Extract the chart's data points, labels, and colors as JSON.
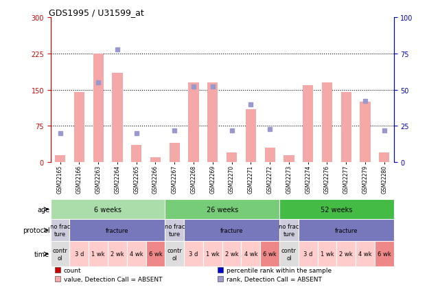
{
  "title": "GDS1995 / U31599_at",
  "samples": [
    "GSM22165",
    "GSM22166",
    "GSM22263",
    "GSM22264",
    "GSM22265",
    "GSM22266",
    "GSM22267",
    "GSM22268",
    "GSM22269",
    "GSM22270",
    "GSM22271",
    "GSM22272",
    "GSM22273",
    "GSM22274",
    "GSM22276",
    "GSM22277",
    "GSM22279",
    "GSM22280"
  ],
  "bar_values": [
    15,
    145,
    225,
    185,
    35,
    10,
    40,
    165,
    165,
    20,
    110,
    30,
    15,
    160,
    165,
    145,
    125,
    20
  ],
  "rank_values": [
    20,
    null,
    55,
    78,
    20,
    null,
    22,
    52,
    52,
    22,
    40,
    23,
    null,
    null,
    null,
    null,
    42,
    22
  ],
  "bar_color": "#f4a9a8",
  "rank_color": "#9999cc",
  "left_ylim": [
    0,
    300
  ],
  "right_ylim": [
    0,
    100
  ],
  "left_yticks": [
    0,
    75,
    150,
    225,
    300
  ],
  "right_yticks": [
    0,
    25,
    50,
    75,
    100
  ],
  "hline_values": [
    75,
    150,
    225
  ],
  "age_groups": [
    {
      "label": "6 weeks",
      "start": 0,
      "end": 6,
      "color": "#aaddaa"
    },
    {
      "label": "26 weeks",
      "start": 6,
      "end": 12,
      "color": "#77cc77"
    },
    {
      "label": "52 weeks",
      "start": 12,
      "end": 18,
      "color": "#44bb44"
    }
  ],
  "protocol_groups": [
    {
      "label": "no frac\nture",
      "start": 0,
      "end": 1,
      "color": "#ccccdd"
    },
    {
      "label": "fracture",
      "start": 1,
      "end": 6,
      "color": "#7777bb"
    },
    {
      "label": "no frac\nture",
      "start": 6,
      "end": 7,
      "color": "#ccccdd"
    },
    {
      "label": "fracture",
      "start": 7,
      "end": 12,
      "color": "#7777bb"
    },
    {
      "label": "no frac\nture",
      "start": 12,
      "end": 13,
      "color": "#ccccdd"
    },
    {
      "label": "fracture",
      "start": 13,
      "end": 18,
      "color": "#7777bb"
    }
  ],
  "time_groups": [
    {
      "label": "contr\nol",
      "start": 0,
      "end": 1,
      "color": "#dddddd"
    },
    {
      "label": "3 d",
      "start": 1,
      "end": 2,
      "color": "#ffcccc"
    },
    {
      "label": "1 wk",
      "start": 2,
      "end": 3,
      "color": "#ffcccc"
    },
    {
      "label": "2 wk",
      "start": 3,
      "end": 4,
      "color": "#ffcccc"
    },
    {
      "label": "4 wk",
      "start": 4,
      "end": 5,
      "color": "#ffcccc"
    },
    {
      "label": "6 wk",
      "start": 5,
      "end": 6,
      "color": "#ee8888"
    },
    {
      "label": "contr\nol",
      "start": 6,
      "end": 7,
      "color": "#dddddd"
    },
    {
      "label": "3 d",
      "start": 7,
      "end": 8,
      "color": "#ffcccc"
    },
    {
      "label": "1 wk",
      "start": 8,
      "end": 9,
      "color": "#ffcccc"
    },
    {
      "label": "2 wk",
      "start": 9,
      "end": 10,
      "color": "#ffcccc"
    },
    {
      "label": "4 wk",
      "start": 10,
      "end": 11,
      "color": "#ffcccc"
    },
    {
      "label": "6 wk",
      "start": 11,
      "end": 12,
      "color": "#ee8888"
    },
    {
      "label": "contr\nol",
      "start": 12,
      "end": 13,
      "color": "#dddddd"
    },
    {
      "label": "3 d",
      "start": 13,
      "end": 14,
      "color": "#ffcccc"
    },
    {
      "label": "1 wk",
      "start": 14,
      "end": 15,
      "color": "#ffcccc"
    },
    {
      "label": "2 wk",
      "start": 15,
      "end": 16,
      "color": "#ffcccc"
    },
    {
      "label": "4 wk",
      "start": 16,
      "end": 17,
      "color": "#ffcccc"
    },
    {
      "label": "6 wk",
      "start": 17,
      "end": 18,
      "color": "#ee8888"
    }
  ],
  "legend": [
    {
      "label": "count",
      "color": "#cc0000"
    },
    {
      "label": "percentile rank within the sample",
      "color": "#0000cc"
    },
    {
      "label": "value, Detection Call = ABSENT",
      "color": "#f4a9a8"
    },
    {
      "label": "rank, Detection Call = ABSENT",
      "color": "#9999cc"
    }
  ],
  "row_labels": [
    "age",
    "protocol",
    "time"
  ],
  "bg_color": "#ffffff",
  "label_color_left": "#cc0000",
  "label_color_right": "#0000bb"
}
